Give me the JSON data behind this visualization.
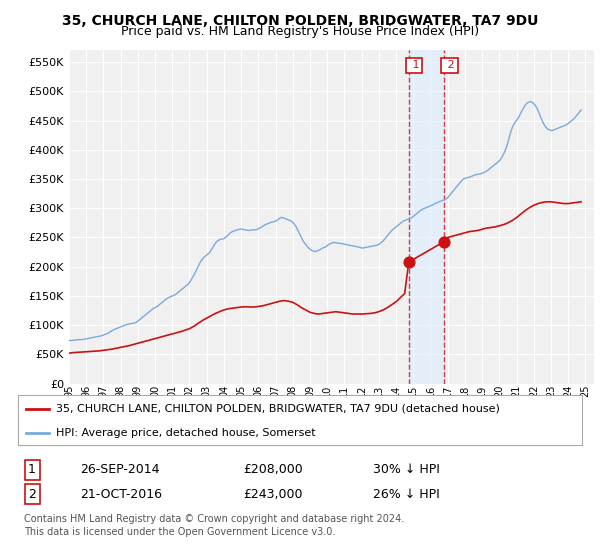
{
  "title": "35, CHURCH LANE, CHILTON POLDEN, BRIDGWATER, TA7 9DU",
  "subtitle": "Price paid vs. HM Land Registry's House Price Index (HPI)",
  "title_fontsize": 10,
  "subtitle_fontsize": 9,
  "background_color": "#ffffff",
  "plot_bg_color": "#f0f0f0",
  "grid_color": "#ffffff",
  "ytick_values": [
    0,
    50000,
    100000,
    150000,
    200000,
    250000,
    300000,
    350000,
    400000,
    450000,
    500000,
    550000
  ],
  "ylim": [
    0,
    570000
  ],
  "xlim_start": 1995.0,
  "xlim_end": 2025.5,
  "hpi_color": "#7aaadd",
  "price_color": "#cc1111",
  "marker_color": "#cc1111",
  "sale1_x": 2014.74,
  "sale1_y": 208000,
  "sale2_x": 2016.8,
  "sale2_y": 243000,
  "vline1_x": 2014.74,
  "vline2_x": 2016.8,
  "vline_color": "#cc1111",
  "vline_bg": "#ddeeff",
  "legend_box_color": "#ffffff",
  "legend_edge_color": "#aaaaaa",
  "legend_label1": "35, CHURCH LANE, CHILTON POLDEN, BRIDGWATER, TA7 9DU (detached house)",
  "legend_label2": "HPI: Average price, detached house, Somerset",
  "table_row1": [
    "1",
    "26-SEP-2014",
    "£208,000",
    "30% ↓ HPI"
  ],
  "table_row2": [
    "2",
    "21-OCT-2016",
    "£243,000",
    "26% ↓ HPI"
  ],
  "footer1": "Contains HM Land Registry data © Crown copyright and database right 2024.",
  "footer2": "This data is licensed under the Open Government Licence v3.0.",
  "hpi_data_x": [
    1995.0,
    1995.083,
    1995.167,
    1995.25,
    1995.333,
    1995.417,
    1995.5,
    1995.583,
    1995.667,
    1995.75,
    1995.833,
    1995.917,
    1996.0,
    1996.083,
    1996.167,
    1996.25,
    1996.333,
    1996.417,
    1996.5,
    1996.583,
    1996.667,
    1996.75,
    1996.833,
    1996.917,
    1997.0,
    1997.083,
    1997.167,
    1997.25,
    1997.333,
    1997.417,
    1997.5,
    1997.583,
    1997.667,
    1997.75,
    1997.833,
    1997.917,
    1998.0,
    1998.083,
    1998.167,
    1998.25,
    1998.333,
    1998.417,
    1998.5,
    1998.583,
    1998.667,
    1998.75,
    1998.833,
    1998.917,
    1999.0,
    1999.083,
    1999.167,
    1999.25,
    1999.333,
    1999.417,
    1999.5,
    1999.583,
    1999.667,
    1999.75,
    1999.833,
    1999.917,
    2000.0,
    2000.083,
    2000.167,
    2000.25,
    2000.333,
    2000.417,
    2000.5,
    2000.583,
    2000.667,
    2000.75,
    2000.833,
    2000.917,
    2001.0,
    2001.083,
    2001.167,
    2001.25,
    2001.333,
    2001.417,
    2001.5,
    2001.583,
    2001.667,
    2001.75,
    2001.833,
    2001.917,
    2002.0,
    2002.083,
    2002.167,
    2002.25,
    2002.333,
    2002.417,
    2002.5,
    2002.583,
    2002.667,
    2002.75,
    2002.833,
    2002.917,
    2003.0,
    2003.083,
    2003.167,
    2003.25,
    2003.333,
    2003.417,
    2003.5,
    2003.583,
    2003.667,
    2003.75,
    2003.833,
    2003.917,
    2004.0,
    2004.083,
    2004.167,
    2004.25,
    2004.333,
    2004.417,
    2004.5,
    2004.583,
    2004.667,
    2004.75,
    2004.833,
    2004.917,
    2005.0,
    2005.083,
    2005.167,
    2005.25,
    2005.333,
    2005.417,
    2005.5,
    2005.583,
    2005.667,
    2005.75,
    2005.833,
    2005.917,
    2006.0,
    2006.083,
    2006.167,
    2006.25,
    2006.333,
    2006.417,
    2006.5,
    2006.583,
    2006.667,
    2006.75,
    2006.833,
    2006.917,
    2007.0,
    2007.083,
    2007.167,
    2007.25,
    2007.333,
    2007.417,
    2007.5,
    2007.583,
    2007.667,
    2007.75,
    2007.833,
    2007.917,
    2008.0,
    2008.083,
    2008.167,
    2008.25,
    2008.333,
    2008.417,
    2008.5,
    2008.583,
    2008.667,
    2008.75,
    2008.833,
    2008.917,
    2009.0,
    2009.083,
    2009.167,
    2009.25,
    2009.333,
    2009.417,
    2009.5,
    2009.583,
    2009.667,
    2009.75,
    2009.833,
    2009.917,
    2010.0,
    2010.083,
    2010.167,
    2010.25,
    2010.333,
    2010.417,
    2010.5,
    2010.583,
    2010.667,
    2010.75,
    2010.833,
    2010.917,
    2011.0,
    2011.083,
    2011.167,
    2011.25,
    2011.333,
    2011.417,
    2011.5,
    2011.583,
    2011.667,
    2011.75,
    2011.833,
    2011.917,
    2012.0,
    2012.083,
    2012.167,
    2012.25,
    2012.333,
    2012.417,
    2012.5,
    2012.583,
    2012.667,
    2012.75,
    2012.833,
    2012.917,
    2013.0,
    2013.083,
    2013.167,
    2013.25,
    2013.333,
    2013.417,
    2013.5,
    2013.583,
    2013.667,
    2013.75,
    2013.833,
    2013.917,
    2014.0,
    2014.083,
    2014.167,
    2014.25,
    2014.333,
    2014.417,
    2014.5,
    2014.583,
    2014.667,
    2014.75,
    2014.833,
    2014.917,
    2015.0,
    2015.083,
    2015.167,
    2015.25,
    2015.333,
    2015.417,
    2015.5,
    2015.583,
    2015.667,
    2015.75,
    2015.833,
    2015.917,
    2016.0,
    2016.083,
    2016.167,
    2016.25,
    2016.333,
    2016.417,
    2016.5,
    2016.583,
    2016.667,
    2016.75,
    2016.833,
    2016.917,
    2017.0,
    2017.083,
    2017.167,
    2017.25,
    2017.333,
    2017.417,
    2017.5,
    2017.583,
    2017.667,
    2017.75,
    2017.833,
    2017.917,
    2018.0,
    2018.083,
    2018.167,
    2018.25,
    2018.333,
    2018.417,
    2018.5,
    2018.583,
    2018.667,
    2018.75,
    2018.833,
    2018.917,
    2019.0,
    2019.083,
    2019.167,
    2019.25,
    2019.333,
    2019.417,
    2019.5,
    2019.583,
    2019.667,
    2019.75,
    2019.833,
    2019.917,
    2020.0,
    2020.083,
    2020.167,
    2020.25,
    2020.333,
    2020.417,
    2020.5,
    2020.583,
    2020.667,
    2020.75,
    2020.833,
    2020.917,
    2021.0,
    2021.083,
    2021.167,
    2021.25,
    2021.333,
    2021.417,
    2021.5,
    2021.583,
    2021.667,
    2021.75,
    2021.833,
    2021.917,
    2022.0,
    2022.083,
    2022.167,
    2022.25,
    2022.333,
    2022.417,
    2022.5,
    2022.583,
    2022.667,
    2022.75,
    2022.833,
    2022.917,
    2023.0,
    2023.083,
    2023.167,
    2023.25,
    2023.333,
    2023.417,
    2023.5,
    2023.583,
    2023.667,
    2023.75,
    2023.833,
    2023.917,
    2024.0,
    2024.083,
    2024.167,
    2024.25,
    2024.333,
    2024.417,
    2024.5,
    2024.583,
    2024.667,
    2024.75
  ],
  "hpi_data_y": [
    74000,
    73500,
    74000,
    74500,
    74200,
    74800,
    75000,
    75300,
    75100,
    75500,
    75800,
    76000,
    76500,
    77000,
    77500,
    78000,
    78500,
    79000,
    79500,
    80000,
    80500,
    81000,
    81500,
    82000,
    83000,
    84000,
    85000,
    86000,
    87500,
    89000,
    90500,
    92000,
    93000,
    94000,
    95000,
    96000,
    97000,
    98000,
    99000,
    100000,
    101000,
    101500,
    102000,
    102500,
    103000,
    103500,
    104000,
    105000,
    107000,
    109000,
    111000,
    113000,
    115000,
    117000,
    119000,
    121000,
    123000,
    125000,
    127000,
    129000,
    130000,
    131500,
    133000,
    135000,
    137000,
    139000,
    141000,
    143000,
    145000,
    146500,
    148000,
    149000,
    150000,
    151000,
    152000,
    154000,
    156000,
    158000,
    160000,
    162000,
    164000,
    166000,
    168000,
    170000,
    173000,
    177000,
    181000,
    185000,
    190000,
    195000,
    200000,
    205000,
    210000,
    213000,
    216000,
    218000,
    220000,
    222000,
    224000,
    228000,
    232000,
    236000,
    240000,
    243000,
    245000,
    246000,
    247000,
    247500,
    248000,
    250000,
    252000,
    254000,
    257000,
    259000,
    260000,
    261000,
    262000,
    263000,
    263500,
    264000,
    264500,
    264000,
    263500,
    263000,
    262500,
    262000,
    262000,
    262500,
    263000,
    263000,
    263000,
    263500,
    265000,
    266000,
    267500,
    269000,
    270500,
    272000,
    273000,
    274000,
    275000,
    276000,
    276500,
    277000,
    278000,
    279500,
    281000,
    283000,
    284000,
    284000,
    283000,
    282000,
    281000,
    280000,
    279000,
    278000,
    276000,
    273000,
    269500,
    265000,
    260000,
    255000,
    250000,
    245000,
    241000,
    238000,
    235000,
    232000,
    230000,
    228000,
    227000,
    226000,
    226000,
    227000,
    228000,
    229000,
    231000,
    232000,
    233000,
    234000,
    236000,
    238000,
    239000,
    240000,
    241000,
    241500,
    241000,
    240500,
    240000,
    240000,
    239500,
    239000,
    238500,
    238000,
    237500,
    237000,
    236500,
    236000,
    235500,
    235000,
    234500,
    234000,
    233500,
    233000,
    232000,
    232000,
    232500,
    233000,
    233500,
    234000,
    234500,
    235000,
    235500,
    236000,
    236500,
    237000,
    238000,
    240000,
    242000,
    244000,
    247000,
    250000,
    253000,
    256000,
    259000,
    262000,
    264000,
    266000,
    268000,
    270000,
    272000,
    274000,
    276000,
    278000,
    279000,
    280000,
    281000,
    282000,
    283000,
    284000,
    286000,
    288000,
    290000,
    292000,
    294000,
    296000,
    297500,
    299000,
    300000,
    301000,
    302000,
    303000,
    304000,
    305000,
    306000,
    308000,
    309000,
    310000,
    311000,
    312000,
    313000,
    314000,
    315000,
    316000,
    318000,
    321000,
    324000,
    327000,
    330000,
    333000,
    336000,
    339000,
    342000,
    345000,
    348000,
    350000,
    351000,
    352000,
    352500,
    353000,
    354000,
    355000,
    356000,
    357000,
    357500,
    358000,
    358500,
    359000,
    360000,
    361000,
    362000,
    363500,
    365000,
    367000,
    369000,
    371000,
    373000,
    375000,
    377000,
    379000,
    381000,
    384000,
    388000,
    393000,
    398000,
    405000,
    413000,
    422000,
    431000,
    438000,
    443000,
    447000,
    450000,
    454000,
    458000,
    463000,
    468000,
    472000,
    476000,
    479000,
    481000,
    482000,
    482000,
    481000,
    479000,
    476000,
    472000,
    467000,
    461000,
    455000,
    449000,
    444000,
    440000,
    437000,
    435000,
    434000,
    433000,
    433000,
    434000,
    435000,
    436000,
    437000,
    438000,
    439000,
    440000,
    441000,
    442000,
    443000,
    445000,
    447000,
    449000,
    451000,
    453000,
    456000,
    459000,
    462000,
    465000,
    468000
  ],
  "price_data_x": [
    1995.0,
    1995.25,
    1995.5,
    1995.75,
    1996.0,
    1996.25,
    1996.5,
    1996.75,
    1997.0,
    1997.25,
    1997.5,
    1997.75,
    1998.0,
    1998.25,
    1998.5,
    1998.75,
    1999.0,
    1999.25,
    1999.5,
    1999.75,
    2000.0,
    2000.25,
    2000.5,
    2000.75,
    2001.0,
    2001.25,
    2001.5,
    2001.75,
    2002.0,
    2002.25,
    2002.5,
    2002.75,
    2003.0,
    2003.25,
    2003.5,
    2003.75,
    2004.0,
    2004.25,
    2004.5,
    2004.75,
    2005.0,
    2005.25,
    2005.5,
    2005.75,
    2006.0,
    2006.25,
    2006.5,
    2006.75,
    2007.0,
    2007.25,
    2007.5,
    2007.75,
    2008.0,
    2008.25,
    2008.5,
    2008.75,
    2009.0,
    2009.25,
    2009.5,
    2009.75,
    2010.0,
    2010.25,
    2010.5,
    2010.75,
    2011.0,
    2011.25,
    2011.5,
    2011.75,
    2012.0,
    2012.25,
    2012.5,
    2012.75,
    2013.0,
    2013.25,
    2013.5,
    2013.75,
    2014.0,
    2014.25,
    2014.5,
    2014.74,
    2016.8,
    2017.0,
    2017.25,
    2017.5,
    2017.75,
    2018.0,
    2018.25,
    2018.5,
    2018.75,
    2019.0,
    2019.25,
    2019.5,
    2019.75,
    2020.0,
    2020.25,
    2020.5,
    2020.75,
    2021.0,
    2021.25,
    2021.5,
    2021.75,
    2022.0,
    2022.25,
    2022.5,
    2022.75,
    2023.0,
    2023.25,
    2023.5,
    2023.75,
    2024.0,
    2024.25,
    2024.5,
    2024.75
  ],
  "price_data_y": [
    52000,
    53000,
    53500,
    54000,
    54500,
    55000,
    55500,
    56000,
    57000,
    58000,
    59000,
    60500,
    62000,
    63500,
    65000,
    67000,
    69000,
    71000,
    73000,
    75000,
    77000,
    79000,
    81000,
    83000,
    85000,
    87000,
    89000,
    91500,
    94000,
    98000,
    103000,
    108000,
    112000,
    116000,
    120000,
    123000,
    126000,
    128000,
    129000,
    130000,
    131000,
    131500,
    131000,
    131000,
    132000,
    133000,
    135000,
    137000,
    139000,
    141000,
    142000,
    141000,
    139000,
    135000,
    130000,
    126000,
    122000,
    120000,
    119000,
    120000,
    121000,
    122000,
    123000,
    122000,
    121000,
    120000,
    119000,
    119000,
    119000,
    119500,
    120000,
    121000,
    123000,
    126000,
    130000,
    135000,
    140000,
    147000,
    154000,
    208000,
    243000,
    250000,
    252000,
    254000,
    256000,
    258000,
    260000,
    261000,
    262000,
    264000,
    266000,
    267000,
    268000,
    270000,
    272000,
    275000,
    279000,
    284000,
    290000,
    296000,
    301000,
    305000,
    308000,
    310000,
    311000,
    311000,
    310000,
    309000,
    308000,
    308000,
    309000,
    310000,
    311000
  ]
}
